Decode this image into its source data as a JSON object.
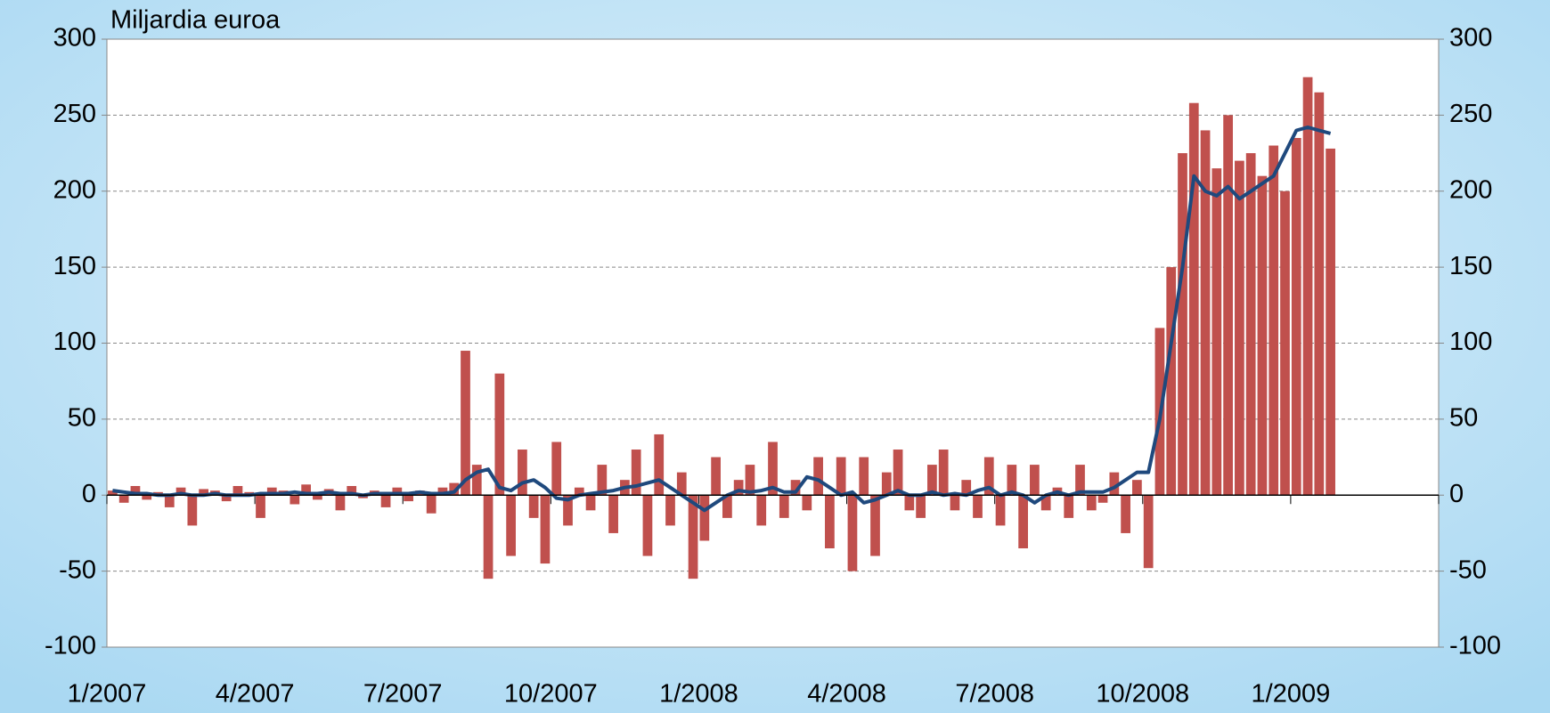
{
  "chart_data": {
    "type": "bar_line",
    "y_axis_label": "Miljardia euroa",
    "categories": [
      "1/2007",
      null,
      null,
      null,
      null,
      null,
      null,
      null,
      null,
      null,
      null,
      null,
      null,
      "4/2007",
      null,
      null,
      null,
      null,
      null,
      null,
      null,
      null,
      null,
      null,
      null,
      null,
      "7/2007",
      null,
      null,
      null,
      null,
      null,
      null,
      null,
      null,
      null,
      null,
      null,
      null,
      "10/2007",
      null,
      null,
      null,
      null,
      null,
      null,
      null,
      null,
      null,
      null,
      null,
      null,
      "1/2008",
      null,
      null,
      null,
      null,
      null,
      null,
      null,
      null,
      null,
      null,
      null,
      null,
      "4/2008",
      null,
      null,
      null,
      null,
      null,
      null,
      null,
      null,
      null,
      null,
      null,
      null,
      "7/2008",
      null,
      null,
      null,
      null,
      null,
      null,
      null,
      null,
      null,
      null,
      null,
      null,
      "10/2008",
      null,
      null,
      null,
      null,
      null,
      null,
      null,
      null,
      null,
      null,
      null,
      null,
      "1/2009",
      null,
      null,
      null,
      null,
      null,
      null,
      null,
      null,
      null,
      null,
      null,
      null
    ],
    "series": [
      {
        "type": "bar",
        "color": "#c0504d",
        "values": [
          3,
          -5,
          6,
          -3,
          2,
          -8,
          5,
          -20,
          4,
          3,
          -4,
          6,
          2,
          -15,
          5,
          3,
          -6,
          7,
          -3,
          4,
          -10,
          6,
          -2,
          3,
          -8,
          5,
          -4,
          3,
          -12,
          5,
          8,
          95,
          20,
          -55,
          80,
          -40,
          30,
          -15,
          -45,
          35,
          -20,
          5,
          -10,
          20,
          -25,
          10,
          30,
          -40,
          40,
          -20,
          15,
          -55,
          -30,
          25,
          -15,
          10,
          20,
          -20,
          35,
          -15,
          10,
          -10,
          25,
          -35,
          25,
          -50,
          25,
          -40,
          15,
          30,
          -10,
          -15,
          20,
          30,
          -10,
          10,
          -15,
          25,
          -20,
          20,
          -35,
          20,
          -10,
          5,
          -15,
          20,
          -10,
          -5,
          15,
          -25,
          10,
          -48,
          110,
          150,
          225,
          258,
          240,
          215,
          250,
          220,
          225,
          210,
          230,
          200,
          235,
          275,
          265,
          228,
          null,
          null,
          null,
          null,
          null,
          null,
          null,
          null,
          null
        ]
      },
      {
        "type": "line",
        "color": "#1f497d",
        "values": [
          3,
          2,
          1,
          1,
          0,
          0,
          1,
          0,
          0,
          1,
          0,
          0,
          0,
          1,
          1,
          1,
          2,
          1,
          1,
          2,
          1,
          1,
          0,
          1,
          1,
          1,
          1,
          2,
          1,
          1,
          2,
          10,
          15,
          17,
          5,
          3,
          8,
          10,
          5,
          -2,
          -3,
          0,
          1,
          2,
          3,
          5,
          6,
          8,
          10,
          5,
          0,
          -5,
          -10,
          -5,
          0,
          3,
          2,
          3,
          5,
          2,
          2,
          12,
          10,
          5,
          0,
          2,
          -5,
          -3,
          0,
          3,
          0,
          0,
          2,
          0,
          1,
          0,
          3,
          5,
          0,
          2,
          0,
          -5,
          0,
          2,
          0,
          2,
          2,
          2,
          5,
          10,
          15,
          15,
          50,
          100,
          150,
          210,
          200,
          197,
          203,
          195,
          200,
          205,
          210,
          225,
          240,
          242,
          240,
          238,
          null,
          null,
          null,
          null,
          null,
          null,
          null,
          null,
          null
        ]
      }
    ],
    "ylim": [
      -100,
      300
    ],
    "yticks": [
      -100,
      -50,
      0,
      50,
      100,
      150,
      200,
      250,
      300
    ],
    "y2lim": [
      -100,
      300
    ],
    "y2ticks": [
      -100,
      -50,
      0,
      50,
      100,
      150,
      200,
      250,
      300
    ],
    "grid": true
  }
}
